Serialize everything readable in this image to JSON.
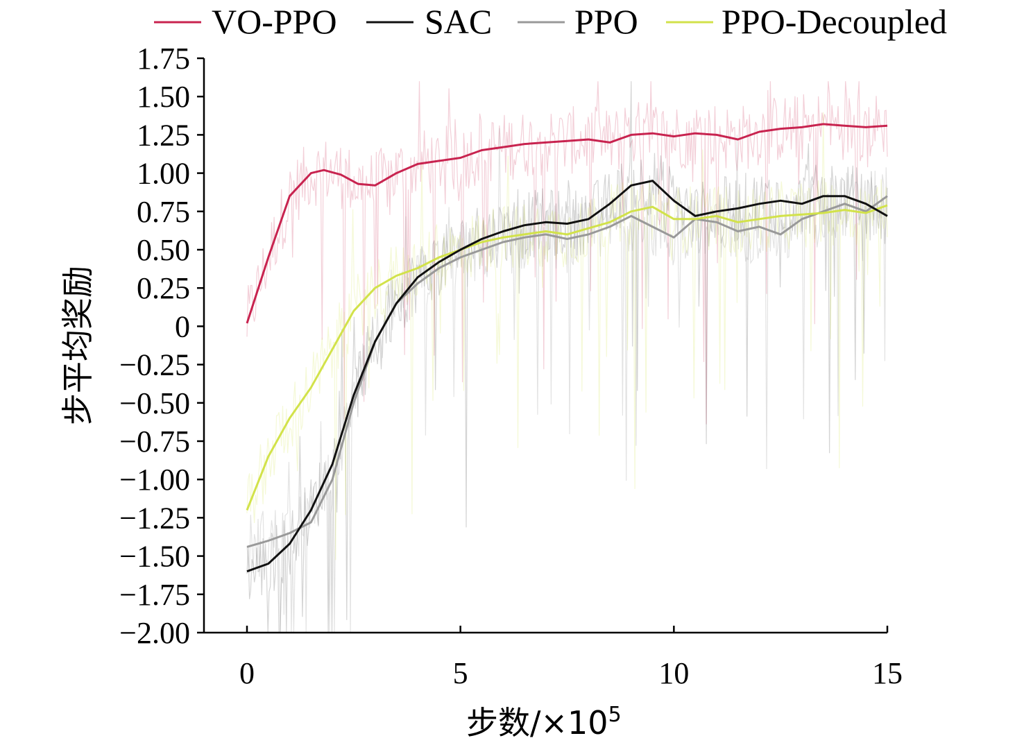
{
  "chart_data": {
    "type": "line",
    "xlabel": "步数/×10",
    "xlabel_sup": "5",
    "ylabel": "步平均奖励",
    "xlim": [
      0,
      15
    ],
    "ylim": [
      -2.0,
      1.75
    ],
    "xticks": [
      0,
      5,
      10,
      15
    ],
    "xtick_labels": [
      "0",
      "5",
      "10",
      "15"
    ],
    "yticks": [
      -2.0,
      -1.75,
      -1.5,
      -1.25,
      -1.0,
      -0.75,
      -0.5,
      -0.25,
      0,
      0.25,
      0.5,
      0.75,
      1.0,
      1.25,
      1.5,
      1.75
    ],
    "ytick_labels": [
      "−2.00",
      "−1.75",
      "−1.50",
      "−1.25",
      "−1.00",
      "−0.75",
      "−0.50",
      "−0.25",
      "0",
      "0.25",
      "0.50",
      "0.75",
      "1.00",
      "1.25",
      "1.50",
      "1.75"
    ],
    "grid": false,
    "legend_position": "top",
    "series": [
      {
        "name": "VO-PPO",
        "color": "#c8234f",
        "x": [
          0,
          0.5,
          1,
          1.5,
          1.8,
          2.2,
          2.6,
          3,
          3.5,
          4,
          4.5,
          5,
          5.5,
          6,
          6.5,
          7,
          7.5,
          8,
          8.5,
          9,
          9.5,
          10,
          10.5,
          11,
          11.5,
          12,
          12.5,
          13,
          13.5,
          14,
          14.5,
          15
        ],
        "y": [
          0.02,
          0.45,
          0.85,
          1.0,
          1.02,
          0.99,
          0.93,
          0.92,
          1.0,
          1.06,
          1.08,
          1.1,
          1.15,
          1.17,
          1.19,
          1.2,
          1.21,
          1.22,
          1.2,
          1.25,
          1.26,
          1.24,
          1.26,
          1.25,
          1.22,
          1.27,
          1.29,
          1.3,
          1.32,
          1.31,
          1.3,
          1.31
        ]
      },
      {
        "name": "SAC",
        "color": "#111111",
        "x": [
          0,
          0.5,
          1,
          1.5,
          2,
          2.5,
          3,
          3.5,
          4,
          4.5,
          5,
          5.5,
          6,
          6.5,
          7,
          7.5,
          8,
          8.5,
          9,
          9.5,
          10,
          10.5,
          11,
          11.5,
          12,
          12.5,
          13,
          13.5,
          14,
          14.5,
          15
        ],
        "y": [
          -1.6,
          -1.55,
          -1.42,
          -1.2,
          -0.9,
          -0.45,
          -0.1,
          0.15,
          0.32,
          0.42,
          0.5,
          0.57,
          0.62,
          0.66,
          0.68,
          0.67,
          0.7,
          0.8,
          0.92,
          0.95,
          0.82,
          0.72,
          0.75,
          0.77,
          0.8,
          0.82,
          0.8,
          0.85,
          0.85,
          0.8,
          0.72
        ]
      },
      {
        "name": "PPO",
        "color": "#999999",
        "x": [
          0,
          0.5,
          1,
          1.5,
          2,
          2.5,
          3,
          3.5,
          4,
          4.5,
          5,
          5.5,
          6,
          6.5,
          7,
          7.5,
          8,
          8.5,
          9,
          9.5,
          10,
          10.5,
          11,
          11.5,
          12,
          12.5,
          13,
          13.5,
          14,
          14.5,
          15
        ],
        "y": [
          -1.44,
          -1.4,
          -1.35,
          -1.28,
          -1.0,
          -0.5,
          -0.1,
          0.15,
          0.28,
          0.38,
          0.45,
          0.5,
          0.55,
          0.58,
          0.6,
          0.57,
          0.6,
          0.65,
          0.72,
          0.65,
          0.58,
          0.7,
          0.68,
          0.62,
          0.65,
          0.6,
          0.7,
          0.75,
          0.8,
          0.75,
          0.85
        ]
      },
      {
        "name": "PPO-Decoupled",
        "color": "#d2e24a",
        "x": [
          0,
          0.5,
          1,
          1.5,
          2,
          2.5,
          3,
          3.5,
          4,
          4.5,
          5,
          5.5,
          6,
          6.5,
          7,
          7.5,
          8,
          8.5,
          9,
          9.5,
          10,
          10.5,
          11,
          11.5,
          12,
          12.5,
          13,
          13.5,
          14,
          14.5,
          15
        ],
        "y": [
          -1.2,
          -0.85,
          -0.6,
          -0.4,
          -0.15,
          0.1,
          0.25,
          0.33,
          0.38,
          0.45,
          0.5,
          0.55,
          0.58,
          0.6,
          0.62,
          0.6,
          0.64,
          0.68,
          0.75,
          0.78,
          0.7,
          0.7,
          0.72,
          0.68,
          0.7,
          0.72,
          0.73,
          0.74,
          0.76,
          0.74,
          0.79
        ]
      }
    ]
  }
}
